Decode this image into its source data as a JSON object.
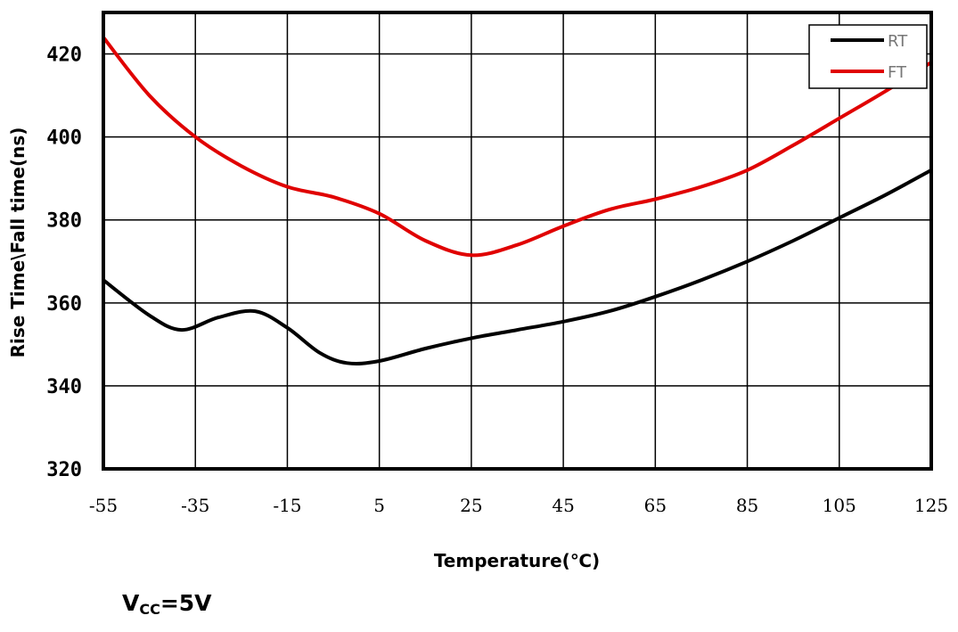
{
  "chart_data": {
    "type": "line",
    "xlabel": "Temperature(℃)",
    "ylabel": "Rise Time\\Fall time(ns)",
    "xlim": [
      -55,
      125
    ],
    "ylim": [
      320,
      430
    ],
    "x_ticks": [
      -55,
      -35,
      -15,
      5,
      25,
      45,
      65,
      85,
      105,
      125
    ],
    "y_ticks": [
      320,
      340,
      360,
      380,
      400,
      420
    ],
    "grid": true,
    "legend_position": "top-right",
    "series": [
      {
        "name": "RT",
        "color": "#000000",
        "x": [
          -55,
          -45,
          -38,
          -30,
          -22,
          -15,
          -8,
          -2,
          5,
          15,
          25,
          35,
          45,
          55,
          65,
          75,
          85,
          95,
          105,
          115,
          125
        ],
        "y": [
          365.5,
          357,
          353.5,
          356.5,
          358,
          354,
          348,
          345.5,
          346,
          349,
          351.5,
          353.5,
          355.5,
          358,
          361.5,
          365.5,
          370,
          375,
          380.5,
          386,
          392
        ]
      },
      {
        "name": "FT",
        "color": "#e00000",
        "x": [
          -55,
          -45,
          -35,
          -25,
          -15,
          -5,
          5,
          15,
          25,
          35,
          45,
          55,
          65,
          75,
          85,
          95,
          105,
          115,
          125
        ],
        "y": [
          424,
          410,
          400,
          393,
          388,
          385.5,
          381.5,
          375,
          371.5,
          374,
          378.5,
          382.5,
          385,
          388,
          392,
          398,
          404.5,
          411,
          418
        ]
      }
    ]
  },
  "annotation": {
    "prefix": "V",
    "subscript": "CC",
    "suffix": "=5V"
  }
}
